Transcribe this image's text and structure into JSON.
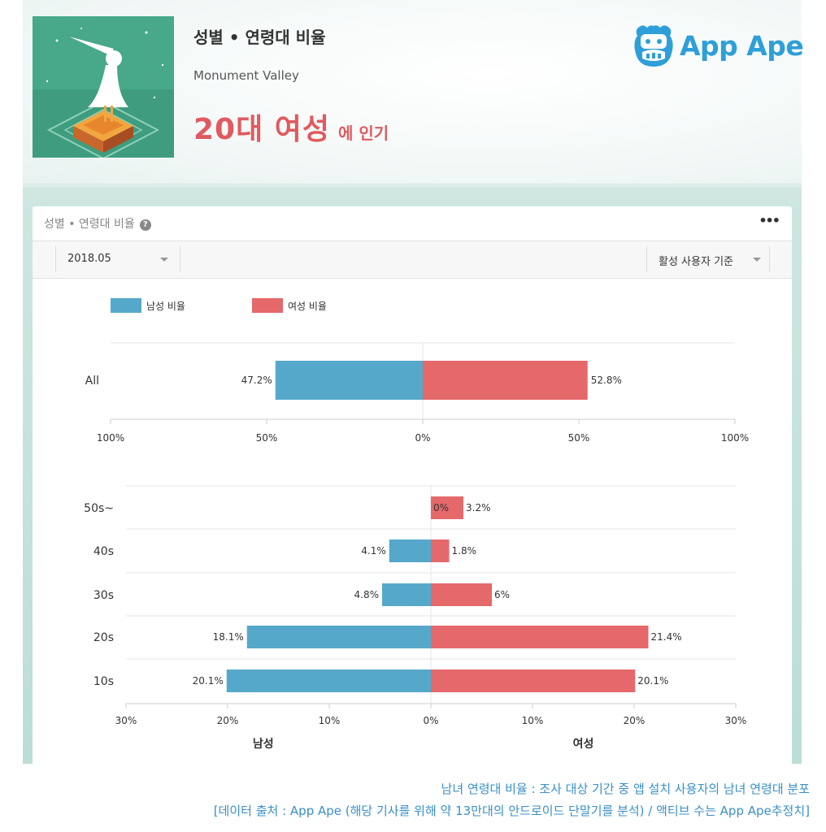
{
  "header": {
    "title": "성별 • 연령대 비율",
    "app_name": "Monument Valley",
    "popular_main": "20대 여성",
    "popular_suffix": "에 인기",
    "brand": "App Ape"
  },
  "card": {
    "title": "성별 • 연령대 비율",
    "date_value": "2018.05",
    "basis_value": "활성 사용자 기준"
  },
  "colors": {
    "male": "#56a8cb",
    "female": "#e5686b",
    "accent_red": "#e05a5f",
    "brand_blue": "#2e9fd8",
    "caption_blue": "#3a8fc7"
  },
  "legend": {
    "male": "남성 비율",
    "female": "여성 비율"
  },
  "chart_data": [
    {
      "type": "bar",
      "orientation": "horizontal-diverging",
      "categories": [
        "All"
      ],
      "series": [
        {
          "name": "남성 비율",
          "values": [
            47.2
          ],
          "labels": [
            "47.2%"
          ]
        },
        {
          "name": "여성 비율",
          "values": [
            52.8
          ],
          "labels": [
            "52.8%"
          ]
        }
      ],
      "xlim": [
        -100,
        100
      ],
      "ticks": [
        -100,
        -50,
        0,
        50,
        100
      ],
      "tick_labels": [
        "100%",
        "50%",
        "0%",
        "50%",
        "100%"
      ],
      "legend_placement": "top-left"
    },
    {
      "type": "bar",
      "orientation": "horizontal-diverging",
      "categories": [
        "50s~",
        "40s",
        "30s",
        "20s",
        "10s"
      ],
      "series": [
        {
          "name": "남성 비율",
          "values": [
            0,
            4.1,
            4.8,
            18.1,
            20.1
          ],
          "labels": [
            "0%",
            "4.1%",
            "4.8%",
            "18.1%",
            "20.1%"
          ]
        },
        {
          "name": "여성 비율",
          "values": [
            3.2,
            1.8,
            6,
            21.4,
            20.1
          ],
          "labels": [
            "3.2%",
            "1.8%",
            "6%",
            "21.4%",
            "20.1%"
          ]
        }
      ],
      "xlim": [
        -30,
        30
      ],
      "ticks": [
        -30,
        -20,
        -10,
        0,
        10,
        20,
        30
      ],
      "tick_labels": [
        "30%",
        "20%",
        "10%",
        "0%",
        "10%",
        "20%",
        "30%"
      ],
      "xlabel_left": "남성",
      "xlabel_right": "여성"
    }
  ],
  "caption": {
    "line1": "남녀 연령대 비율 : 조사 대상 기간 중 앱 설치 사용자의 남녀 연령대 분포",
    "line2": "[데이터 출처 : App Ape (해당 기사를 위해 약 13만대의 안드로이드 단말기를 분석) / 액티브 수는 App Ape추정치]"
  }
}
